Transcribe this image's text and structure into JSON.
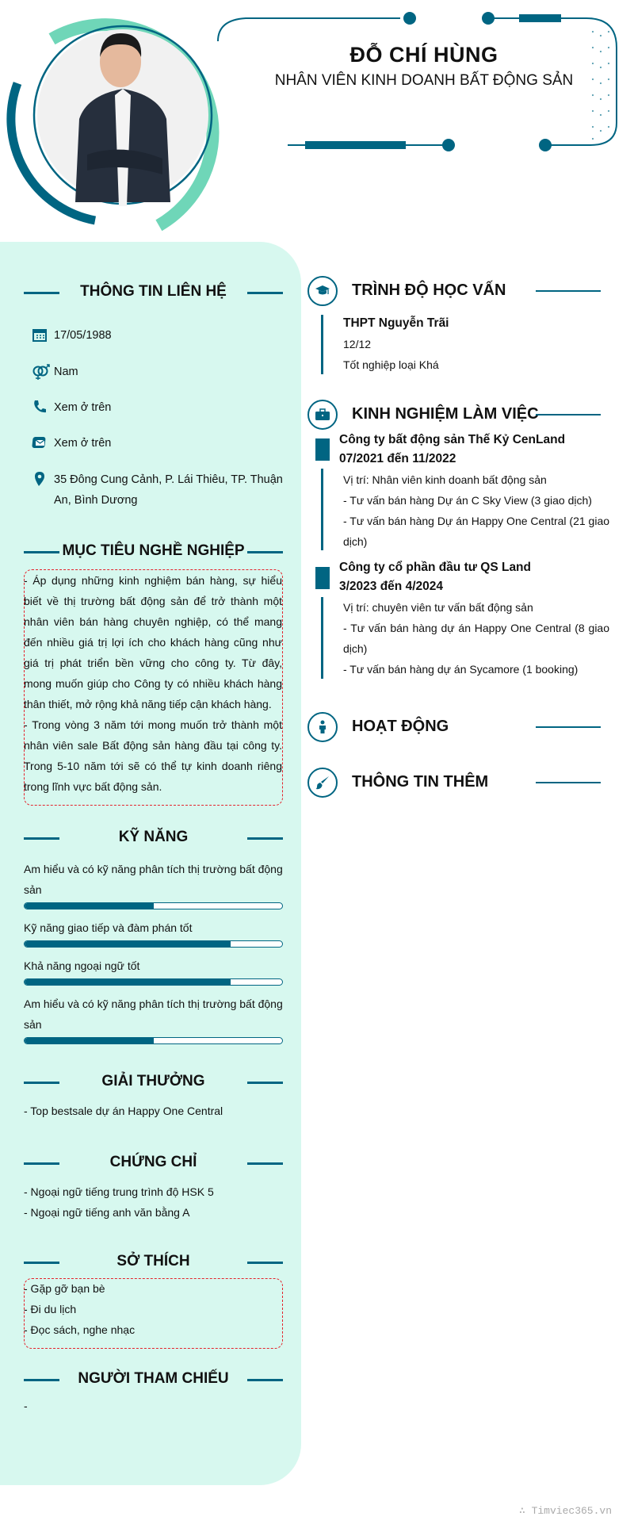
{
  "header": {
    "name": "ĐỖ CHÍ HÙNG",
    "role": "NHÂN VIÊN KINH DOANH BẤT ĐỘNG SẢN"
  },
  "colors": {
    "primary": "#006582",
    "accent": "#6fd6b8",
    "panel": "#d7f8ef",
    "dashed_border": "#e4232b"
  },
  "contact": {
    "title": "THÔNG TIN LIÊN HỆ",
    "items": [
      {
        "icon": "calendar-icon",
        "text": "17/05/1988"
      },
      {
        "icon": "gender-icon",
        "text": "Nam"
      },
      {
        "icon": "phone-icon",
        "text": "Xem ở trên"
      },
      {
        "icon": "email-icon",
        "text": "Xem ở trên"
      },
      {
        "icon": "location-icon",
        "text": "35 Đông Cung Cảnh, P. Lái Thiêu, TP. Thuận An, Bình Dương"
      }
    ]
  },
  "objective": {
    "title": "MỤC TIÊU NGHỀ NGHIỆP",
    "text1": "- Áp dụng những kinh nghiệm bán hàng, sự hiểu biết về thị trường bất động sản để trở thành một nhân viên bán hàng chuyên nghiệp, có thể mang đến nhiều giá trị lợi ích cho khách hàng cũng như giá trị phát triển bền vững cho công ty. Từ đây, mong muốn giúp cho Công ty có nhiều khách hàng thân thiết, mở rộng khả năng tiếp cận khách hàng.",
    "text2": "- Trong vòng 3 năm tới mong muốn trở thành một nhân viên sale Bất động sản hàng đầu tại công ty. Trong 5-10 năm tới sẽ có thể tự kinh doanh riêng trong lĩnh vực bất động sản."
  },
  "skills": {
    "title": "KỸ NĂNG",
    "items": [
      {
        "name": "Am hiểu và có kỹ năng phân tích thị trường bất động sản",
        "level": 50
      },
      {
        "name": "Kỹ năng giao tiếp và đàm phán tốt",
        "level": 80
      },
      {
        "name": "Khả năng ngoại ngữ tốt",
        "level": 80
      },
      {
        "name": "Am hiểu và có kỹ năng phân tích thị trường bất động sản",
        "level": 50
      }
    ]
  },
  "awards": {
    "title": "GIẢI THƯỞNG",
    "items": [
      "- Top bestsale dự án Happy One Central"
    ]
  },
  "certificates": {
    "title": "CHỨNG CHỈ",
    "items": [
      "- Ngoại ngữ tiếng trung trình độ HSK 5",
      "- Ngoại ngữ tiếng anh văn bằng A"
    ]
  },
  "hobbies": {
    "title": "SỞ THÍCH",
    "items": [
      "- Gặp gỡ bạn bè",
      "- Đi du lịch",
      "- Đọc sách, nghe nhạc"
    ]
  },
  "references": {
    "title": "NGƯỜI THAM CHIẾU",
    "text": "-"
  },
  "education": {
    "title": "TRÌNH ĐỘ HỌC VẤN",
    "school": "THPT Nguyễn Trãi",
    "period": "12/12",
    "desc": "Tốt nghiệp loại Khá"
  },
  "experience": {
    "title": "KINH NGHIỆM LÀM VIỆC",
    "jobs": [
      {
        "company": "Công ty bất động sản Thế Kỷ CenLand",
        "period": "07/2021 đến 11/2022",
        "lines": [
          "Vị trí: Nhân viên kinh doanh bất động sản",
          "- Tư vấn bán hàng Dự án C Sky View (3 giao dịch)",
          "- Tư vấn bán hàng Dự án Happy One Central (21 giao dịch)"
        ]
      },
      {
        "company": "Công ty cổ phần đầu tư QS Land",
        "period": "3/2023 đến 4/2024",
        "lines": [
          "Vị trí: chuyên viên tư vấn bất động sản",
          "- Tư vấn bán hàng dự án Happy One Central (8 giao dịch)",
          "- Tư vấn bán hàng dự án  Sycamore (1 booking)"
        ]
      }
    ]
  },
  "activities": {
    "title": "HOẠT ĐỘNG"
  },
  "extra": {
    "title": "THÔNG TIN THÊM"
  },
  "footer": {
    "watermark": "∴ Timviec365.vn"
  }
}
